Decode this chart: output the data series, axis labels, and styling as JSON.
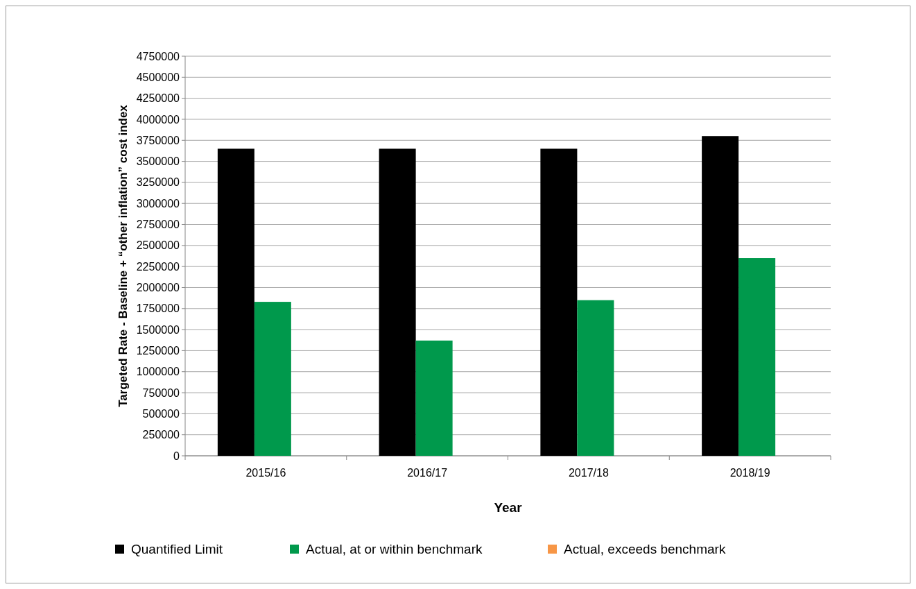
{
  "chart_data": {
    "type": "bar",
    "xlabel": "Year",
    "ylabel": "Targeted Rate - Baseline + “other inflation” cost index",
    "categories": [
      "2015/16",
      "2016/17",
      "2017/18",
      "2018/19"
    ],
    "series": [
      {
        "name": "Quantified Limit",
        "color": "#000000",
        "values": [
          3650000,
          3650000,
          3650000,
          3800000
        ]
      },
      {
        "name": "Actual, at or within benchmark",
        "color": "#00994c",
        "values": [
          1830000,
          1370000,
          1850000,
          2350000
        ]
      },
      {
        "name": "Actual, exceeds benchmark",
        "color": "#f79646",
        "values": [
          null,
          null,
          null,
          null
        ]
      }
    ],
    "ylim": [
      0,
      4750000
    ],
    "yticks": [
      0,
      250000,
      500000,
      750000,
      1000000,
      1250000,
      1500000,
      1750000,
      2000000,
      2250000,
      2500000,
      2750000,
      3000000,
      3250000,
      3500000,
      3750000,
      4000000,
      4250000,
      4500000,
      4750000
    ],
    "grid": "y",
    "legend": "bottom"
  }
}
